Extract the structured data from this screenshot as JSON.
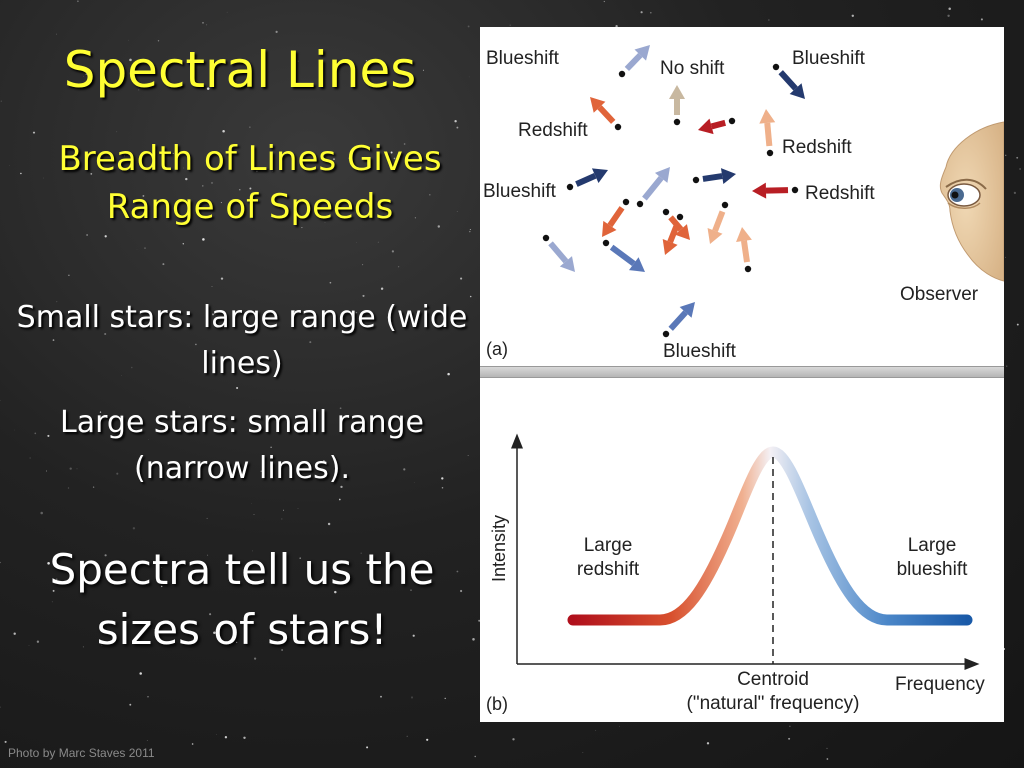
{
  "slide": {
    "title": "Spectral Lines",
    "subtitle": "Breadth of Lines Gives Range of Speeds",
    "points": [
      "Small stars: large range (wide lines)",
      "Large stars: small range (narrow lines)."
    ],
    "conclusion": "Spectra tell us the sizes of stars!",
    "credit": "Photo by Marc Staves 2011"
  },
  "figure": {
    "panel_a": {
      "label": "(a)",
      "labels": {
        "blueshift_topleft": "Blueshift",
        "no_shift": "No shift",
        "blueshift_topright": "Blueshift",
        "redshift_left": "Redshift",
        "redshift_right_upper": "Redshift",
        "blueshift_left": "Blueshift",
        "redshift_right": "Redshift",
        "blueshift_bottom": "Blueshift",
        "observer": "Observer"
      },
      "colors": {
        "red_dark": "#b81e24",
        "red_mid": "#e0643a",
        "red_light": "#efb08a",
        "blue_dark": "#243a6e",
        "blue_mid": "#5a78b8",
        "blue_light": "#9aa8d0",
        "neutral": "#c8b8a0"
      }
    },
    "panel_b": {
      "label": "(b)",
      "y_axis_label": "Intensity",
      "x_axis_label": "Frequency",
      "large_redshift": [
        "Large",
        "redshift"
      ],
      "large_blueshift": [
        "Large",
        "blueshift"
      ],
      "centroid": "Centroid",
      "natural_frequency": "(\"natural\" frequency)",
      "colors": {
        "red_end": "#b0101c",
        "peak": "#f4f0f4",
        "blue_end": "#1a5aa8"
      }
    }
  }
}
